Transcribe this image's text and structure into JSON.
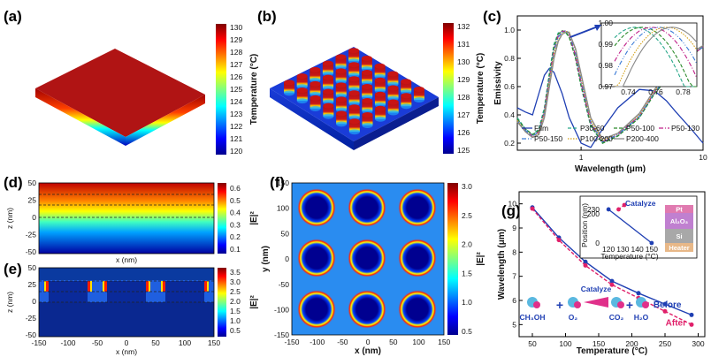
{
  "panels": {
    "a": {
      "label": "(a)",
      "colorbar": {
        "title": "Temperature (°C)",
        "ticks": [
          "130",
          "129",
          "128",
          "127",
          "126",
          "125",
          "124",
          "123",
          "122",
          "121",
          "120"
        ]
      }
    },
    "b": {
      "label": "(b)",
      "colorbar": {
        "title": "Temperature (°C)",
        "ticks": [
          "132",
          "131",
          "130",
          "129",
          "128",
          "127",
          "126",
          "125"
        ]
      }
    },
    "c": {
      "label": "(c)"
    },
    "d": {
      "label": "(d)",
      "ylabel": "z (nm)",
      "xlabel": "x (nm)",
      "yticks": [
        "50",
        "25",
        "0",
        "-25",
        "-50"
      ],
      "cbar_title": "|E|²",
      "cbar_ticks": [
        "0.6",
        "0.5",
        "0.4",
        "0.3",
        "0.2",
        "0.1"
      ]
    },
    "e": {
      "label": "(e)",
      "ylabel": "z (nm)",
      "xlabel": "x (nm)",
      "yticks": [
        "50",
        "25",
        "0",
        "-25",
        "-50"
      ],
      "xticks": [
        "-150",
        "-100",
        "-50",
        "0",
        "50",
        "100",
        "150"
      ],
      "cbar_title": "|E|²",
      "cbar_ticks": [
        "3.5",
        "3.0",
        "2.5",
        "2.0",
        "1.5",
        "1.0",
        "0.5"
      ]
    },
    "f": {
      "label": "(f)",
      "ylabel": "y (nm)",
      "xlabel": "x (nm)",
      "ticks": [
        "-150",
        "-100",
        "-50",
        "0",
        "50",
        "100",
        "150"
      ],
      "yticks": [
        "150",
        "100",
        "50",
        "0",
        "-50",
        "-100",
        "-150"
      ],
      "cbar_title": "|E|²",
      "cbar_ticks": [
        "3.0",
        "2.5",
        "2.0",
        "1.5",
        "1.0",
        "0.5"
      ]
    },
    "g": {
      "label": "(g)"
    },
    "g_inset": {
      "title": "Catalyze",
      "ylabel": "Position (nm)",
      "yticks": [
        "230",
        "200",
        "0"
      ],
      "xlabel": "Temperature (°C)",
      "xticks": [
        "120",
        "130",
        "140",
        "150"
      ],
      "layers": [
        "Pt",
        "Al₂O₃",
        "Si",
        "Heater"
      ]
    },
    "g_reaction": {
      "catalyze": "Catalyze",
      "species": [
        "CH₃OH",
        "+",
        "O₂",
        "CO₂",
        "+",
        "H₂O"
      ]
    }
  },
  "chart_data": [
    {
      "type": "line",
      "title": "",
      "xlabel": "Wavelength (μm)",
      "ylabel": "Emissivity",
      "xscale": "log",
      "xlim": [
        0.3,
        10
      ],
      "ylim": [
        0.15,
        1.1
      ],
      "xticks": [
        "1",
        "10"
      ],
      "yticks": [
        "0.2",
        "0.4",
        "0.6",
        "0.8",
        "1.0"
      ],
      "legend": {
        "placement": "bottom"
      },
      "series": [
        {
          "name": "Film",
          "color": "#1f3fb3",
          "dash": "solid",
          "x": [
            0.3,
            0.35,
            0.4,
            0.45,
            0.5,
            0.55,
            0.6,
            0.7,
            0.8,
            1.0,
            1.2,
            1.5,
            2,
            3,
            4,
            5,
            6,
            8,
            10
          ],
          "y": [
            0.45,
            0.42,
            0.4,
            0.55,
            0.68,
            0.73,
            0.7,
            0.55,
            0.38,
            0.2,
            0.17,
            0.3,
            0.45,
            0.58,
            0.57,
            0.5,
            0.42,
            0.3,
            0.2
          ]
        },
        {
          "name": "P30-60",
          "color": "#2aa88a",
          "dash": "dash",
          "x": [
            0.3,
            0.35,
            0.4,
            0.45,
            0.5,
            0.55,
            0.6,
            0.65,
            0.7,
            0.75,
            0.8,
            0.9,
            1.0,
            1.2,
            1.5,
            2,
            3,
            4,
            5,
            6,
            8,
            10
          ],
          "y": [
            0.38,
            0.3,
            0.26,
            0.3,
            0.45,
            0.7,
            0.9,
            0.98,
            0.99,
            0.98,
            0.95,
            0.8,
            0.6,
            0.32,
            0.2,
            0.25,
            0.38,
            0.55,
            0.65,
            0.72,
            0.82,
            0.88
          ]
        },
        {
          "name": "P50-100",
          "color": "#2a8a2a",
          "dash": "dash",
          "x": [
            0.3,
            0.35,
            0.4,
            0.45,
            0.5,
            0.55,
            0.6,
            0.65,
            0.7,
            0.75,
            0.8,
            0.9,
            1.0,
            1.2,
            1.5,
            2,
            3,
            4,
            5,
            6,
            8,
            10
          ],
          "y": [
            0.37,
            0.3,
            0.26,
            0.29,
            0.43,
            0.68,
            0.88,
            0.97,
            0.995,
            0.985,
            0.95,
            0.8,
            0.61,
            0.33,
            0.2,
            0.25,
            0.38,
            0.55,
            0.65,
            0.72,
            0.82,
            0.88
          ]
        },
        {
          "name": "P50-130",
          "color": "#c0208a",
          "dash": "dashdot",
          "x": [
            0.3,
            0.35,
            0.4,
            0.45,
            0.5,
            0.55,
            0.6,
            0.65,
            0.7,
            0.75,
            0.8,
            0.9,
            1.0,
            1.2,
            1.5,
            2,
            3,
            4,
            5,
            6,
            8,
            10
          ],
          "y": [
            0.36,
            0.29,
            0.25,
            0.28,
            0.42,
            0.66,
            0.86,
            0.96,
            0.99,
            0.995,
            0.97,
            0.82,
            0.63,
            0.34,
            0.21,
            0.26,
            0.39,
            0.56,
            0.66,
            0.73,
            0.82,
            0.88
          ]
        },
        {
          "name": "P50-150",
          "color": "#3a7ad6",
          "dash": "dashdotdot",
          "x": [
            0.3,
            0.35,
            0.4,
            0.45,
            0.5,
            0.55,
            0.6,
            0.65,
            0.7,
            0.75,
            0.8,
            0.9,
            1.0,
            1.2,
            1.5,
            2,
            3,
            4,
            5,
            6,
            8,
            10
          ],
          "y": [
            0.36,
            0.29,
            0.25,
            0.28,
            0.41,
            0.65,
            0.85,
            0.95,
            0.985,
            0.995,
            0.98,
            0.84,
            0.65,
            0.35,
            0.21,
            0.26,
            0.39,
            0.56,
            0.66,
            0.73,
            0.83,
            0.88
          ]
        },
        {
          "name": "P100-200",
          "color": "#d4a017",
          "dash": "dot",
          "x": [
            0.3,
            0.35,
            0.4,
            0.45,
            0.5,
            0.55,
            0.6,
            0.65,
            0.7,
            0.75,
            0.8,
            0.9,
            1.0,
            1.2,
            1.5,
            2,
            3,
            4,
            5,
            6,
            8,
            10
          ],
          "y": [
            0.36,
            0.28,
            0.24,
            0.27,
            0.4,
            0.63,
            0.83,
            0.93,
            0.975,
            0.99,
            0.985,
            0.86,
            0.67,
            0.36,
            0.22,
            0.27,
            0.4,
            0.57,
            0.67,
            0.74,
            0.83,
            0.89
          ]
        },
        {
          "name": "P200-400",
          "color": "#888888",
          "dash": "solid",
          "x": [
            0.3,
            0.35,
            0.4,
            0.45,
            0.5,
            0.55,
            0.6,
            0.65,
            0.7,
            0.75,
            0.8,
            0.9,
            1.0,
            1.2,
            1.5,
            2,
            3,
            4,
            5,
            6,
            8,
            10
          ],
          "y": [
            0.35,
            0.28,
            0.24,
            0.26,
            0.38,
            0.6,
            0.8,
            0.92,
            0.97,
            0.985,
            0.98,
            0.87,
            0.69,
            0.38,
            0.23,
            0.27,
            0.41,
            0.58,
            0.68,
            0.75,
            0.84,
            0.89
          ]
        }
      ],
      "inset": {
        "xlim": [
          0.73,
          0.79
        ],
        "ylim": [
          0.97,
          1.0
        ],
        "xticks": [
          "0.74",
          "0.76",
          "0.78"
        ],
        "yticks": [
          "1.00",
          "0.99",
          "0.98",
          "0.97"
        ]
      }
    },
    {
      "type": "line",
      "title": "",
      "xlabel": "Temperature (°C)",
      "ylabel": "Wavelength (μm)",
      "xlim": [
        30,
        310
      ],
      "ylim": [
        4.5,
        10.5
      ],
      "xticks": [
        "50",
        "100",
        "150",
        "200",
        "250",
        "300"
      ],
      "yticks": [
        "5",
        "6",
        "7",
        "8",
        "9",
        "10"
      ],
      "series": [
        {
          "name": "Before",
          "color": "#1f3fb3",
          "dash": "solid",
          "x": [
            50,
            90,
            130,
            170,
            210,
            250,
            290
          ],
          "y": [
            9.85,
            8.6,
            7.6,
            6.8,
            6.3,
            5.85,
            5.4
          ]
        },
        {
          "name": "After",
          "color": "#e0206a",
          "dash": "dash",
          "x": [
            50,
            90,
            130,
            170,
            210,
            250,
            290
          ],
          "y": [
            9.8,
            8.5,
            7.45,
            6.65,
            6.1,
            5.55,
            5.0
          ]
        }
      ]
    },
    {
      "type": "line",
      "title": "",
      "note": "inset of (g)",
      "xlim": [
        115,
        155
      ],
      "ylim": [
        0,
        260
      ],
      "series": [
        {
          "name": "",
          "color": "#1f3fb3",
          "dash": "solid",
          "x": [
            120,
            150
          ],
          "y": [
            230,
            0
          ]
        },
        {
          "name": "",
          "color": "#e0206a",
          "dash": "dash",
          "x": [
            127,
            131
          ],
          "y": [
            230,
            260
          ]
        }
      ]
    }
  ]
}
